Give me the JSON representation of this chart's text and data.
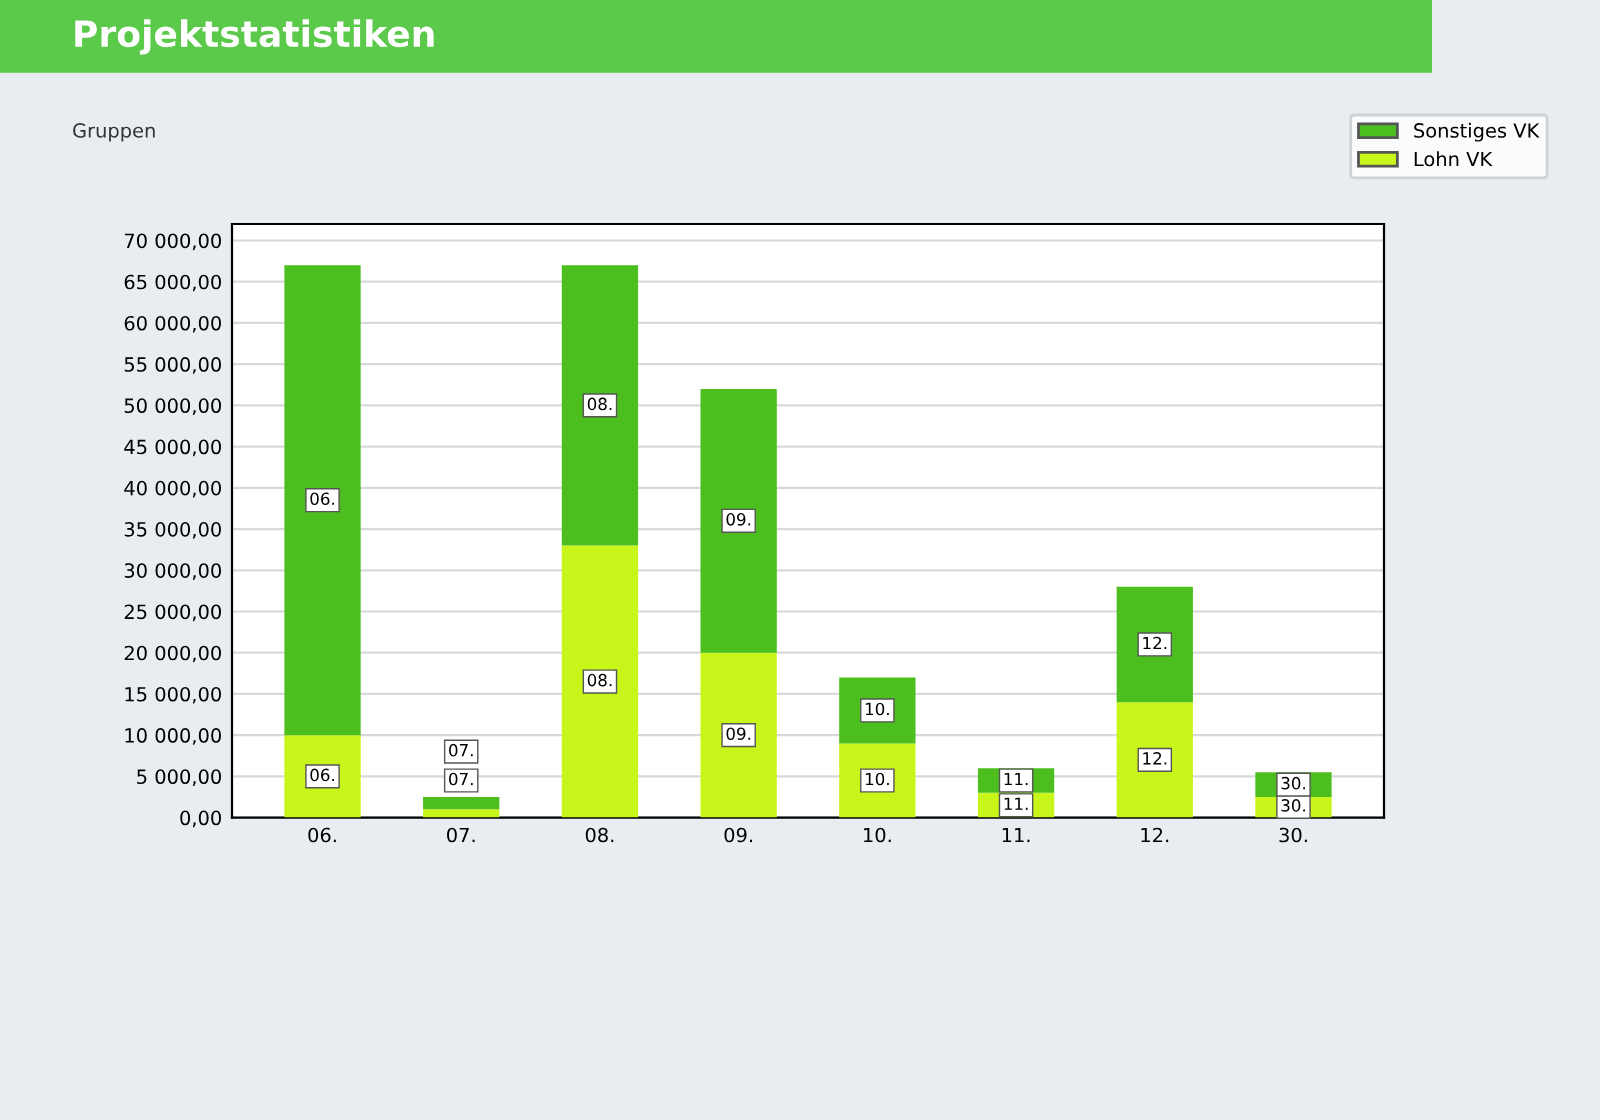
{
  "chart_data": {
    "type": "bar",
    "title": "Projektstatistiken",
    "subtitle": "Gruppen",
    "stacked": true,
    "categories": [
      "06.",
      "07.",
      "08.",
      "09.",
      "10.",
      "11.",
      "12.",
      "30."
    ],
    "series": [
      {
        "name": "Lohn VK",
        "color": "#c8f51a",
        "values": [
          10000,
          1000,
          33000,
          20000,
          9000,
          3000,
          14000,
          2500
        ]
      },
      {
        "name": "Sonstiges VK",
        "color": "#4cbf1e",
        "values": [
          57000,
          1500,
          34000,
          32000,
          8000,
          3000,
          14000,
          3000
        ]
      }
    ],
    "annotations": [
      {
        "text": "06.",
        "x": "06.",
        "y": 5000
      },
      {
        "text": "06.",
        "x": "06.",
        "y": 38500
      },
      {
        "text": "07.",
        "x": "07.",
        "y": 4500
      },
      {
        "text": "07.",
        "x": "07.",
        "y": 8000
      },
      {
        "text": "08.",
        "x": "08.",
        "y": 16500
      },
      {
        "text": "08.",
        "x": "08.",
        "y": 50000
      },
      {
        "text": "09.",
        "x": "09.",
        "y": 10000
      },
      {
        "text": "09.",
        "x": "09.",
        "y": 36000
      },
      {
        "text": "10.",
        "x": "10.",
        "y": 4500
      },
      {
        "text": "10.",
        "x": "10.",
        "y": 13000
      },
      {
        "text": "11.",
        "x": "11.",
        "y": 1500
      },
      {
        "text": "11.",
        "x": "11.",
        "y": 4500
      },
      {
        "text": "12.",
        "x": "12.",
        "y": 7000
      },
      {
        "text": "12.",
        "x": "12.",
        "y": 21000
      },
      {
        "text": "30.",
        "x": "30.",
        "y": 1300
      },
      {
        "text": "30.",
        "x": "30.",
        "y": 4000
      }
    ],
    "ylim": [
      0,
      72000
    ],
    "yticks": [
      {
        "value": 0,
        "label": "0,00"
      },
      {
        "value": 5000,
        "label": "5 000,00"
      },
      {
        "value": 10000,
        "label": "10 000,00"
      },
      {
        "value": 15000,
        "label": "15 000,00"
      },
      {
        "value": 20000,
        "label": "20 000,00"
      },
      {
        "value": 25000,
        "label": "25 000,00"
      },
      {
        "value": 30000,
        "label": "30 000,00"
      },
      {
        "value": 35000,
        "label": "35 000,00"
      },
      {
        "value": 40000,
        "label": "40 000,00"
      },
      {
        "value": 45000,
        "label": "45 000,00"
      },
      {
        "value": 50000,
        "label": "50 000,00"
      },
      {
        "value": 55000,
        "label": "55 000,00"
      },
      {
        "value": 60000,
        "label": "60 000,00"
      },
      {
        "value": 65000,
        "label": "65 000,00"
      },
      {
        "value": 70000,
        "label": "70 000,00"
      }
    ],
    "grid": "y",
    "legend": "top right"
  }
}
